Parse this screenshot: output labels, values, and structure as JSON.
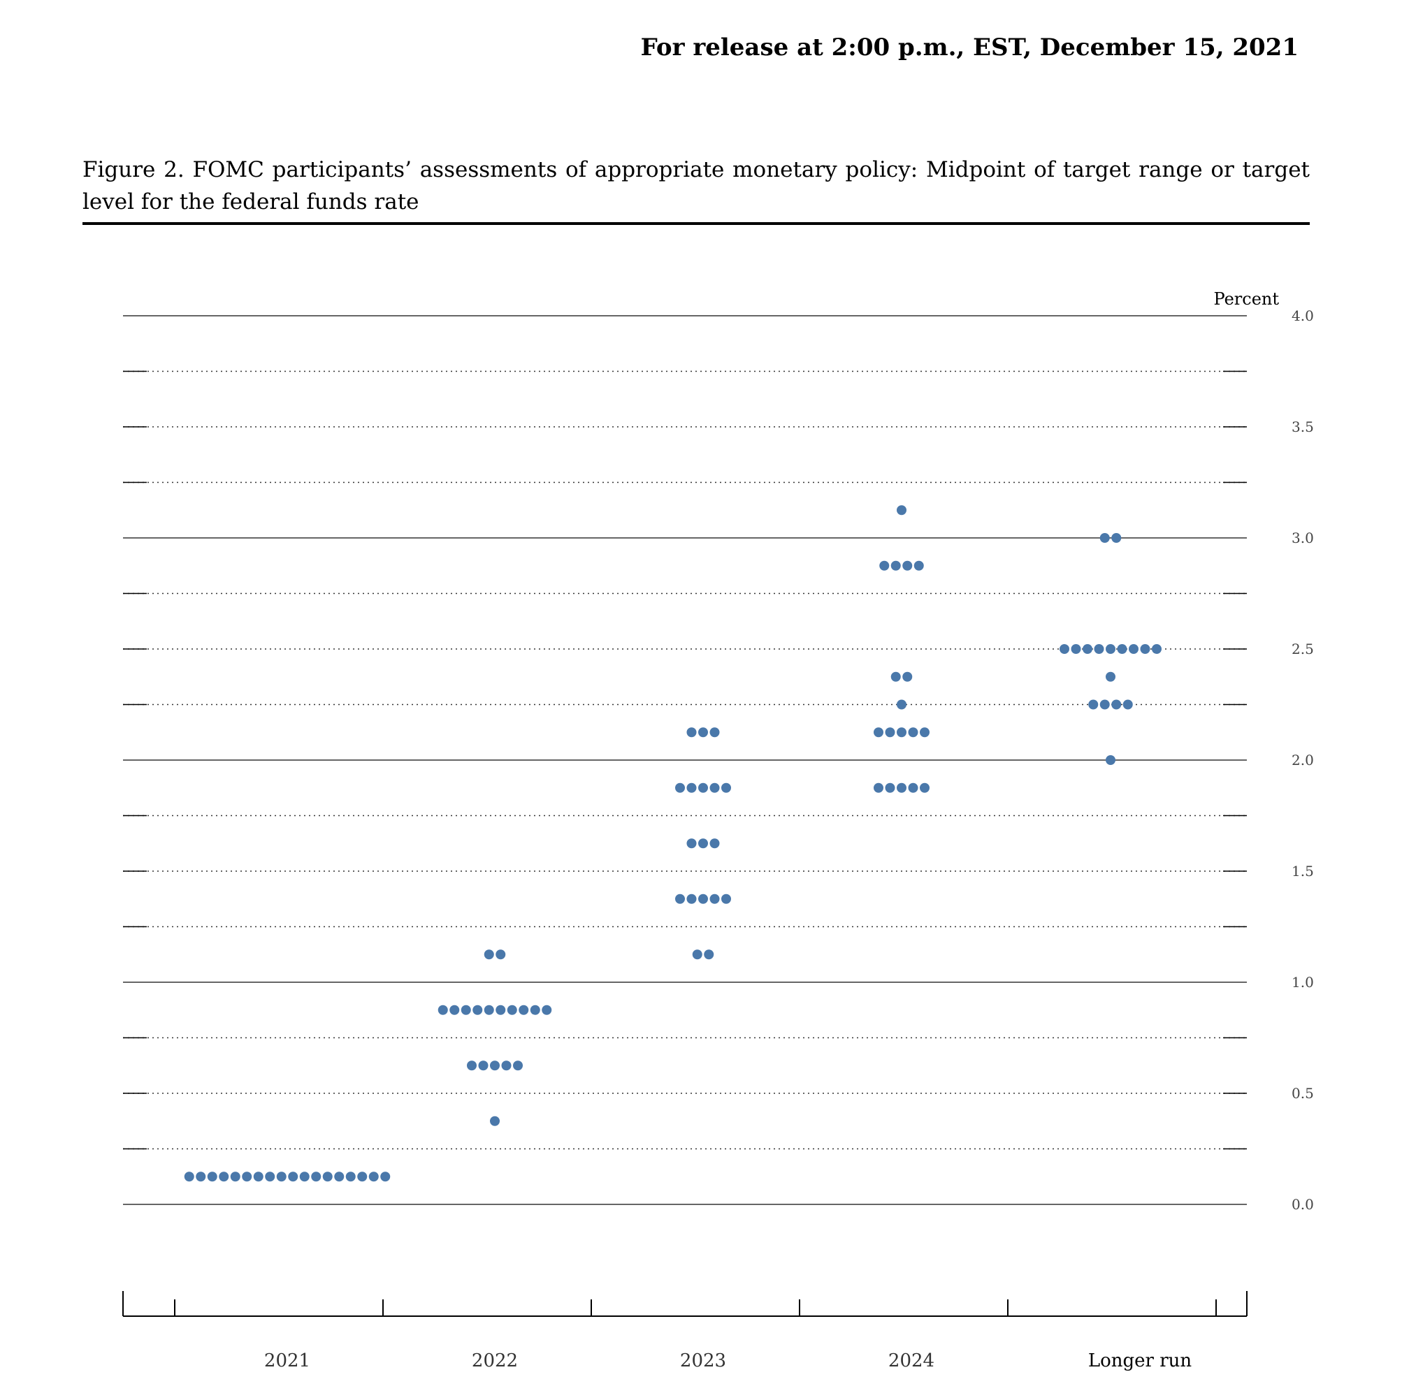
{
  "release_line": "For release at 2:00 p.m., EST, December 15, 2021",
  "figure_title": "Figure 2.  FOMC participants’ assessments of appropriate monetary policy:  Midpoint of target range or target level for the federal funds rate",
  "colors": {
    "dot": "#4a78aa",
    "axis": "#000000",
    "grid": "#333333"
  },
  "chart_data": {
    "type": "scatter",
    "title": "",
    "ylabel": "Percent",
    "xlabel": "",
    "ylim": [
      0,
      4
    ],
    "yticks": [
      "0.0",
      "0.5",
      "1.0",
      "1.5",
      "2.0",
      "2.5",
      "3.0",
      "3.5",
      "4.0"
    ],
    "grid": "solid at whole percents, dotted every 0.25",
    "categories": [
      "2021",
      "2022",
      "2023",
      "2024",
      "Longer run"
    ],
    "groups": [
      {
        "category": "2021",
        "points": [
          {
            "y": 0.125,
            "count": 18
          }
        ]
      },
      {
        "category": "2022",
        "points": [
          {
            "y": 1.125,
            "count": 2
          },
          {
            "y": 0.875,
            "count": 10
          },
          {
            "y": 0.625,
            "count": 5
          },
          {
            "y": 0.375,
            "count": 1
          }
        ]
      },
      {
        "category": "2023",
        "points": [
          {
            "y": 2.125,
            "count": 3
          },
          {
            "y": 1.875,
            "count": 5
          },
          {
            "y": 1.625,
            "count": 3
          },
          {
            "y": 1.375,
            "count": 5
          },
          {
            "y": 1.125,
            "count": 2
          }
        ]
      },
      {
        "category": "2024",
        "points": [
          {
            "y": 3.125,
            "count": 1
          },
          {
            "y": 2.875,
            "count": 4
          },
          {
            "y": 2.375,
            "count": 2
          },
          {
            "y": 2.25,
            "count": 1
          },
          {
            "y": 2.125,
            "count": 5
          },
          {
            "y": 1.875,
            "count": 5
          }
        ]
      },
      {
        "category": "Longer run",
        "points": [
          {
            "y": 3.0,
            "count": 2
          },
          {
            "y": 2.5,
            "count": 9
          },
          {
            "y": 2.375,
            "count": 1
          },
          {
            "y": 2.25,
            "count": 4
          },
          {
            "y": 2.0,
            "count": 1
          }
        ]
      }
    ]
  }
}
